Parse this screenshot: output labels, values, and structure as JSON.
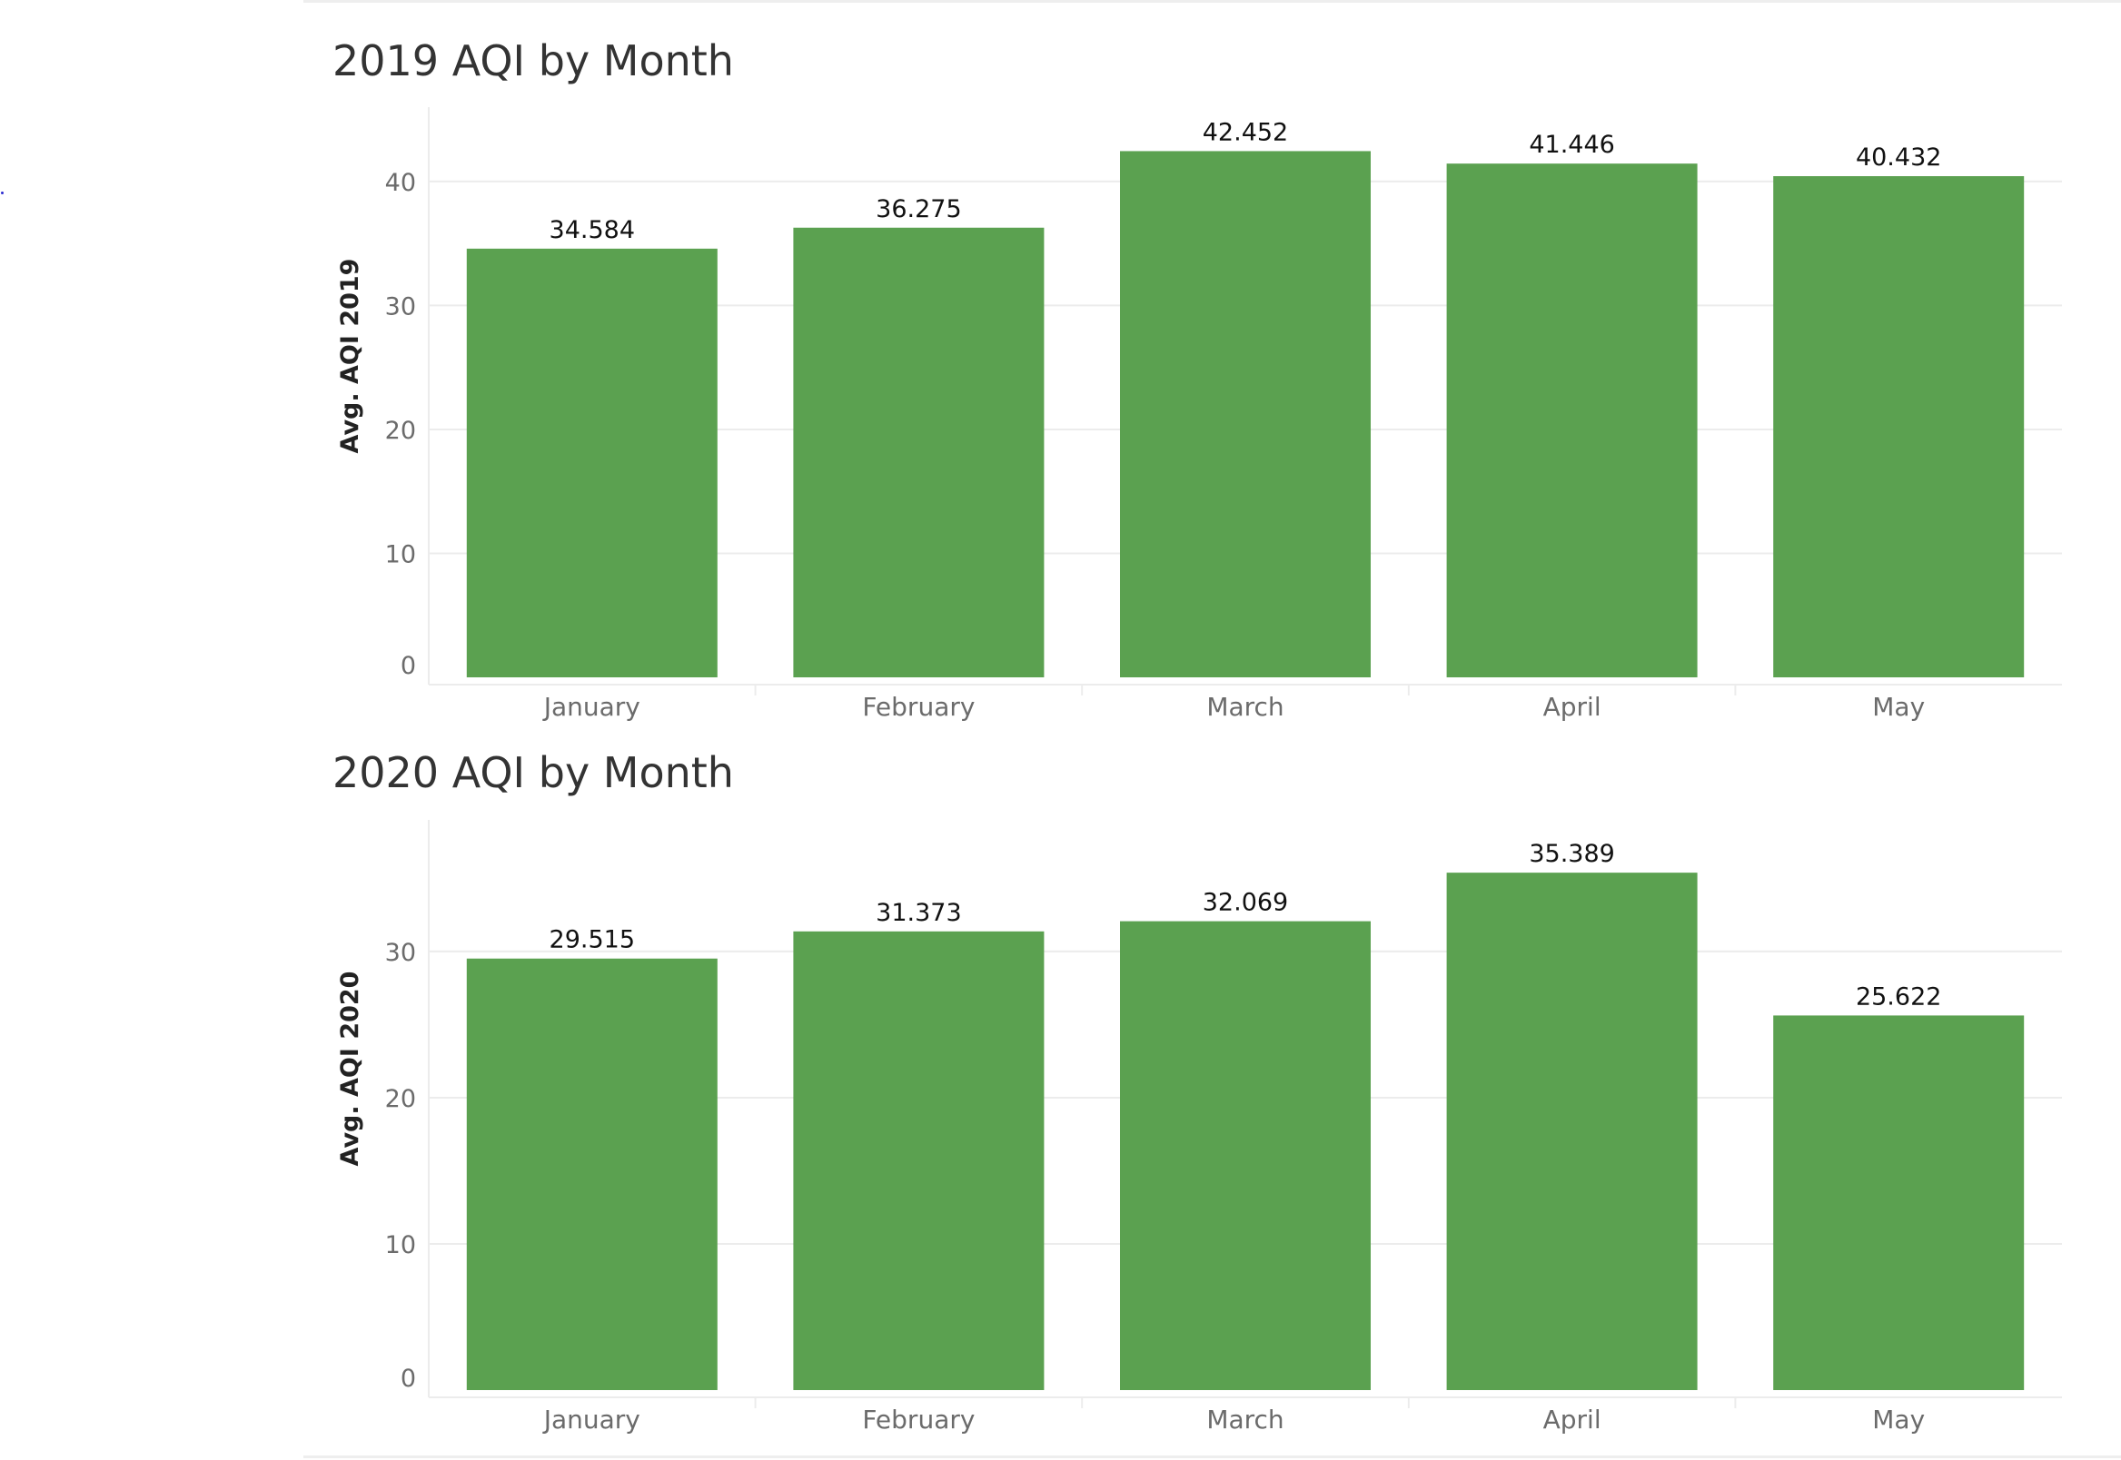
{
  "colors": {
    "bar": "#5ba150",
    "gridline": "#ececec",
    "tick_label": "#6b6b6b",
    "axis_title": "#222222",
    "data_label": "#111111",
    "title": "#333333"
  },
  "chart_data": [
    {
      "type": "bar",
      "title": "2019 AQI by Month",
      "xlabel": "",
      "ylabel": "Avg. AQI 2019",
      "categories": [
        "January",
        "February",
        "March",
        "April",
        "May"
      ],
      "values": [
        34.584,
        36.275,
        42.452,
        41.446,
        40.432
      ],
      "value_labels": [
        "34.584",
        "36.275",
        "42.452",
        "41.446",
        "40.432"
      ],
      "yticks": [
        0,
        10,
        20,
        30,
        40
      ],
      "ylim": [
        0,
        46
      ],
      "grid": true,
      "legend": "none"
    },
    {
      "type": "bar",
      "title": "2020 AQI by Month",
      "xlabel": "",
      "ylabel": "Avg. AQI 2020",
      "categories": [
        "January",
        "February",
        "March",
        "April",
        "May"
      ],
      "values": [
        29.515,
        31.373,
        32.069,
        35.389,
        25.622
      ],
      "value_labels": [
        "29.515",
        "31.373",
        "32.069",
        "35.389",
        "25.622"
      ],
      "yticks": [
        0,
        10,
        20,
        30
      ],
      "ylim": [
        0,
        39
      ],
      "grid": true,
      "legend": "none"
    }
  ]
}
